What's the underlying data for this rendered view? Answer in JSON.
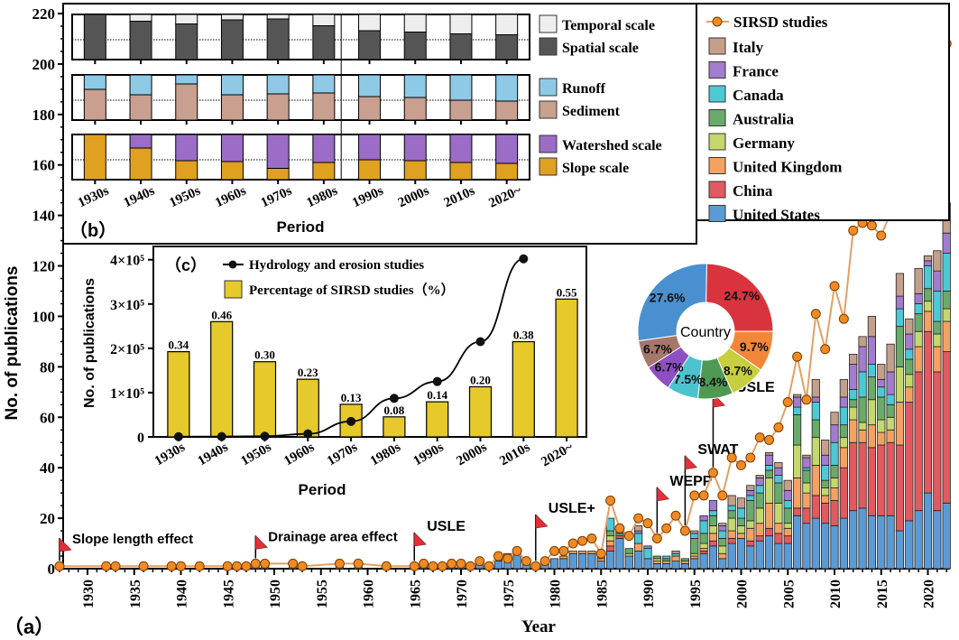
{
  "chart_data": [
    {
      "id": "a",
      "panel_label": "（a）",
      "type": "bar",
      "stacked": true,
      "title": "",
      "xlabel": "Year",
      "ylabel": "No. of publications",
      "ylim": [
        0,
        220
      ],
      "yticks": [
        0,
        20,
        40,
        60,
        80,
        100,
        120,
        140,
        160,
        180,
        200,
        220
      ],
      "xlim": [
        1926,
        2023
      ],
      "xticks": [
        1930,
        1935,
        1940,
        1945,
        1950,
        1955,
        1960,
        1965,
        1970,
        1975,
        1980,
        1985,
        1990,
        1995,
        2000,
        2005,
        2010,
        2015,
        2020
      ],
      "legend": {
        "placement": "top-right",
        "line_label": "SIRSD studies",
        "bar_labels": [
          "Italy",
          "France",
          "Canada",
          "Australia",
          "Germany",
          "United Kingdom",
          "China",
          "United States"
        ]
      },
      "series_colors": {
        "United States": "#5b9bd5",
        "China": "#e05a5f",
        "United Kingdom": "#f4a261",
        "Germany": "#c5d86d",
        "Australia": "#6aaa6a",
        "Canada": "#4dc9d6",
        "France": "#a27ccf",
        "Italy": "#c4a08c",
        "SIRSD studies": "#f08a24"
      },
      "sirsd_line": {
        "years": [
          1927,
          1932,
          1933,
          1936,
          1939,
          1940,
          1942,
          1945,
          1946,
          1947,
          1948,
          1949,
          1952,
          1953,
          1957,
          1959,
          1962,
          1965,
          1966,
          1967,
          1968,
          1969,
          1970,
          1971,
          1972,
          1973,
          1974,
          1975,
          1976,
          1977,
          1978,
          1979,
          1980,
          1981,
          1982,
          1983,
          1984,
          1985,
          1986,
          1987,
          1988,
          1989,
          1990,
          1991,
          1992,
          1993,
          1994,
          1995,
          1996,
          1997,
          1998,
          1999,
          2000,
          2001,
          2002,
          2003,
          2004,
          2005,
          2006,
          2007,
          2008,
          2009,
          2010,
          2011,
          2012,
          2013,
          2014,
          2015,
          2016,
          2017,
          2018,
          2019,
          2020,
          2021,
          2022
        ],
        "values": [
          1,
          1,
          1,
          1,
          1,
          1,
          1,
          1,
          1,
          1,
          2,
          2,
          2,
          1,
          2,
          2,
          1,
          1,
          2,
          1,
          1,
          2,
          2,
          1,
          3,
          1,
          5,
          4,
          7,
          3,
          1,
          3,
          7,
          7,
          10,
          11,
          12,
          6,
          27,
          16,
          13,
          20,
          18,
          12,
          16,
          21,
          15,
          29,
          29,
          38,
          29,
          44,
          41,
          44,
          52,
          51,
          56,
          66,
          84,
          67,
          101,
          87,
          112,
          99,
          134,
          137,
          136,
          132,
          141,
          164,
          155,
          172,
          179,
          198,
          208
        ]
      },
      "bars": {
        "years": [
          1927,
          1932,
          1933,
          1936,
          1939,
          1940,
          1942,
          1945,
          1946,
          1947,
          1948,
          1949,
          1952,
          1953,
          1957,
          1959,
          1962,
          1965,
          1966,
          1967,
          1969,
          1970,
          1972,
          1974,
          1975,
          1976,
          1977,
          1978,
          1979,
          1980,
          1981,
          1982,
          1983,
          1984,
          1985,
          1986,
          1987,
          1988,
          1989,
          1990,
          1991,
          1992,
          1993,
          1994,
          1995,
          1996,
          1997,
          1998,
          1999,
          2000,
          2001,
          2002,
          2003,
          2004,
          2005,
          2006,
          2007,
          2008,
          2009,
          2010,
          2011,
          2012,
          2013,
          2014,
          2015,
          2016,
          2017,
          2018,
          2019,
          2020,
          2021,
          2022
        ],
        "United States": [
          1,
          1,
          1,
          1,
          1,
          1,
          1,
          1,
          1,
          1,
          2,
          2,
          2,
          1,
          2,
          2,
          1,
          1,
          2,
          1,
          2,
          2,
          2,
          3,
          4,
          6,
          2,
          1,
          3,
          4,
          4,
          6,
          6,
          6,
          3,
          7,
          12,
          5,
          7,
          4,
          2,
          2,
          3,
          2,
          4,
          6,
          9,
          4,
          10,
          12,
          9,
          11,
          13,
          10,
          10,
          21,
          18,
          20,
          18,
          17,
          20,
          23,
          24,
          21,
          21,
          21,
          15,
          19,
          23,
          30,
          23,
          26
        ],
        "China": [
          0,
          0,
          0,
          0,
          0,
          0,
          0,
          0,
          0,
          0,
          0,
          0,
          0,
          0,
          0,
          0,
          0,
          0,
          0,
          0,
          0,
          0,
          0,
          0,
          0,
          0,
          0,
          0,
          0,
          0,
          0,
          0,
          0,
          0,
          0,
          2,
          1,
          0,
          0,
          0,
          0,
          0,
          0,
          0,
          0,
          1,
          2,
          0,
          2,
          0,
          2,
          2,
          3,
          4,
          3,
          3,
          6,
          9,
          8,
          10,
          20,
          27,
          26,
          27,
          28,
          29,
          34,
          47,
          55,
          64,
          55,
          60
        ],
        "United Kingdom": [
          0,
          0,
          0,
          0,
          0,
          0,
          0,
          0,
          0,
          0,
          0,
          0,
          0,
          0,
          0,
          0,
          0,
          0,
          0,
          0,
          0,
          0,
          0,
          0,
          2,
          0,
          0,
          0,
          0,
          0,
          1,
          1,
          1,
          1,
          1,
          2,
          0,
          0,
          3,
          0,
          1,
          1,
          2,
          1,
          1,
          1,
          3,
          2,
          3,
          2,
          5,
          5,
          10,
          4,
          3,
          12,
          6,
          12,
          3,
          5,
          8,
          9,
          5,
          9,
          5,
          5,
          17,
          6,
          10,
          8,
          10,
          12
        ],
        "Germany": [
          0,
          0,
          0,
          0,
          0,
          0,
          0,
          0,
          0,
          0,
          0,
          0,
          0,
          0,
          0,
          0,
          0,
          0,
          0,
          0,
          0,
          0,
          0,
          0,
          0,
          0,
          0,
          0,
          0,
          0,
          0,
          0,
          0,
          0,
          1,
          2,
          0,
          1,
          0,
          0,
          1,
          0,
          0,
          0,
          1,
          2,
          3,
          3,
          5,
          3,
          3,
          6,
          10,
          8,
          2,
          13,
          4,
          11,
          3,
          4,
          4,
          5,
          3,
          10,
          5,
          5,
          14,
          5,
          6,
          4,
          5,
          5
        ],
        "Australia": [
          0,
          0,
          0,
          0,
          0,
          0,
          0,
          0,
          0,
          0,
          0,
          0,
          0,
          0,
          0,
          0,
          0,
          0,
          0,
          0,
          0,
          0,
          0,
          1,
          0,
          0,
          0,
          0,
          0,
          0,
          0,
          0,
          0,
          0,
          0,
          2,
          1,
          2,
          0,
          0,
          1,
          1,
          0,
          1,
          6,
          4,
          4,
          3,
          3,
          3,
          8,
          6,
          3,
          8,
          6,
          12,
          5,
          7,
          3,
          5,
          5,
          3,
          10,
          9,
          9,
          5,
          16,
          6,
          7,
          5,
          5,
          7
        ],
        "Canada": [
          0,
          0,
          0,
          0,
          0,
          0,
          0,
          0,
          0,
          0,
          0,
          0,
          0,
          0,
          0,
          0,
          0,
          0,
          0,
          0,
          0,
          0,
          0,
          0,
          0,
          0,
          0,
          0,
          0,
          0,
          0,
          0,
          0,
          0,
          2,
          5,
          0,
          0,
          4,
          4,
          0,
          1,
          1,
          0,
          2,
          5,
          2,
          3,
          2,
          4,
          2,
          3,
          2,
          3,
          3,
          3,
          1,
          7,
          6,
          9,
          7,
          4,
          10,
          5,
          4,
          4,
          7,
          4,
          4,
          9,
          12,
          15
        ],
        "France": [
          0,
          0,
          0,
          0,
          0,
          0,
          0,
          0,
          0,
          0,
          0,
          0,
          0,
          0,
          0,
          0,
          0,
          0,
          0,
          0,
          0,
          0,
          0,
          0,
          0,
          0,
          0,
          0,
          0,
          0,
          0,
          0,
          0,
          0,
          0,
          0,
          1,
          0,
          1,
          1,
          0,
          0,
          0,
          0,
          0,
          2,
          4,
          2,
          0,
          0,
          2,
          3,
          4,
          3,
          4,
          4,
          4,
          2,
          4,
          7,
          4,
          10,
          10,
          11,
          3,
          9,
          5,
          6,
          4,
          2,
          8,
          8
        ],
        "Italy": [
          0,
          0,
          0,
          0,
          0,
          0,
          0,
          0,
          0,
          0,
          0,
          0,
          0,
          0,
          0,
          0,
          0,
          0,
          0,
          0,
          0,
          0,
          0,
          0,
          0,
          0,
          0,
          0,
          0,
          0,
          0,
          0,
          0,
          0,
          0,
          0,
          0,
          0,
          2,
          0,
          0,
          0,
          1,
          0,
          1,
          0,
          0,
          1,
          4,
          4,
          2,
          1,
          1,
          2,
          4,
          1,
          1,
          7,
          6,
          5,
          7,
          4,
          4,
          8,
          6,
          11,
          9,
          6,
          10,
          2,
          8,
          12
        ]
      },
      "annotations": [
        {
          "year": 1927,
          "label": "Slope length effect"
        },
        {
          "year": 1948,
          "label": "Drainage area effect"
        },
        {
          "year": 1965,
          "label": "USLE"
        },
        {
          "year": 1978,
          "label": "USLE+"
        },
        {
          "year": 1991,
          "label": "WEPP"
        },
        {
          "year": 1994,
          "label": "SWAT"
        },
        {
          "year": 1997,
          "label": "RUSLE"
        }
      ]
    },
    {
      "id": "b",
      "panel_label": "（b）",
      "type": "bar",
      "stacked": true,
      "normalized": true,
      "xlabel": "Period",
      "categories": [
        "1930s",
        "1940s",
        "1950s",
        "1960s",
        "1970s",
        "1980s",
        "1990s",
        "2000s",
        "2010s",
        "2020~"
      ],
      "subplots": [
        {
          "name": "scale-type",
          "series": [
            {
              "name": "Spatial scale",
              "color": "#555555",
              "values": [
                1.0,
                0.85,
                0.79,
                0.88,
                0.9,
                0.75,
                0.64,
                0.61,
                0.57,
                0.55
              ]
            },
            {
              "name": "Temporal scale",
              "color": "#eeeeee",
              "values": [
                0.0,
                0.15,
                0.21,
                0.12,
                0.1,
                0.25,
                0.36,
                0.39,
                0.43,
                0.45
              ]
            }
          ]
        },
        {
          "name": "variable",
          "series": [
            {
              "name": "Sediment",
              "color": "#c9a090",
              "values": [
                0.68,
                0.56,
                0.8,
                0.56,
                0.58,
                0.6,
                0.52,
                0.5,
                0.44,
                0.42
              ]
            },
            {
              "name": "Runoff",
              "color": "#8ecae6",
              "values": [
                0.32,
                0.44,
                0.2,
                0.44,
                0.42,
                0.4,
                0.48,
                0.5,
                0.56,
                0.58
              ]
            }
          ]
        },
        {
          "name": "spatial-extent",
          "series": [
            {
              "name": "Slope scale",
              "color": "#e0a020",
              "values": [
                1.0,
                0.7,
                0.42,
                0.4,
                0.25,
                0.38,
                0.44,
                0.42,
                0.38,
                0.36
              ]
            },
            {
              "name": "Watershed scale",
              "color": "#9b6dc6",
              "values": [
                0.0,
                0.3,
                0.58,
                0.6,
                0.75,
                0.62,
                0.56,
                0.58,
                0.62,
                0.64
              ]
            }
          ]
        }
      ],
      "legend": {
        "placement": "right",
        "labels": [
          "Temporal scale",
          "Spatial scale",
          "Runoff",
          "Sediment",
          "Watershed scale",
          "Slope scale"
        ]
      }
    },
    {
      "id": "c",
      "panel_label": "（c）",
      "type": "bar+line",
      "xlabel": "Period",
      "ylabel": "No. of publications",
      "categories": [
        "1930s",
        "1940s",
        "1950s",
        "1960s",
        "1970s",
        "1980s",
        "1990s",
        "2000s",
        "2010s",
        "2020~"
      ],
      "ylim": [
        0,
        430000
      ],
      "yticks": [
        0,
        100000,
        200000,
        300000,
        400000
      ],
      "ytick_labels": [
        "0",
        "1×10⁵",
        "2×10⁵",
        "3×10⁵",
        "4×10⁵"
      ],
      "legend": {
        "placement": "top",
        "labels": [
          "Hydrology and erosion studies",
          "Percentage of SIRSD studies（%）"
        ]
      },
      "series": [
        {
          "name": "Hydrology and erosion studies",
          "type": "line",
          "color": "#000000",
          "values": [
            500,
            800,
            1500,
            7000,
            35000,
            87000,
            125000,
            215000,
            402000,
            null
          ]
        },
        {
          "name": "Percentage of SIRSD studies（%）",
          "type": "bar",
          "color": "#e6c92a",
          "values": [
            0.34,
            0.46,
            0.3,
            0.23,
            0.13,
            0.08,
            0.14,
            0.2,
            0.38,
            0.55
          ],
          "data_labels": [
            "0.34",
            "0.46",
            "0.30",
            "0.23",
            "0.13",
            "0.08",
            "0.14",
            "0.20",
            "0.38",
            "0.55"
          ]
        }
      ],
      "bar_axis_scale_percent_max": 0.76
    },
    {
      "id": "pie",
      "type": "pie",
      "donut": true,
      "center_label": "Country",
      "labels": [
        "United States",
        "China",
        "United Kingdom",
        "Germany",
        "Australia",
        "Canada",
        "France",
        "Italy"
      ],
      "values": [
        27.6,
        24.7,
        9.7,
        8.7,
        8.4,
        7.5,
        6.7,
        6.7
      ],
      "data_labels": [
        "27.6%",
        "24.7%",
        "9.7%",
        "8.7%",
        "8.4%",
        "7.5%",
        "6.7%",
        "6.7%"
      ]
    }
  ]
}
